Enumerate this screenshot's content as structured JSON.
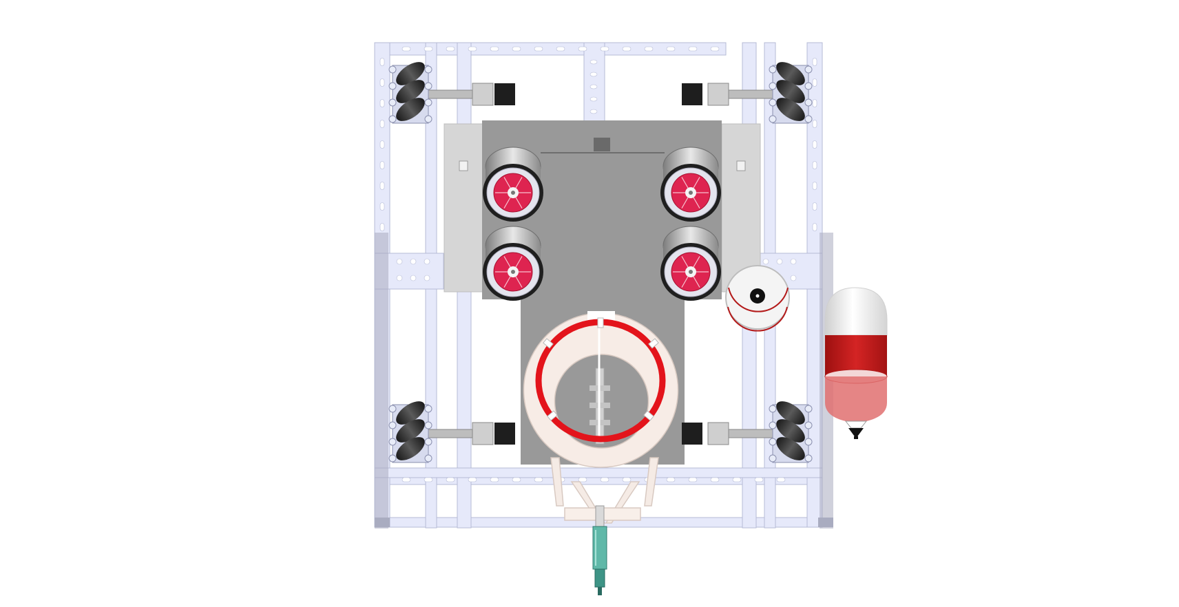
{
  "view": {
    "background": "#ffffff",
    "frame_color": "#e6e9fa",
    "frame_edge": "#b6bbd6",
    "frame_shadow": "#a9acc0",
    "hole_color": "#ffffff",
    "plate_color": "#999999",
    "plate_dark": "#8c8c8c",
    "bracket_color": "#d0d0d0",
    "hub_color": "#de2450",
    "wheel_rim": "#e4e4ee",
    "tire_color": "#2a2a2a",
    "ring_color": "#e3141b",
    "collar_color": "#f7ece6",
    "sensor_color": "#5fb8a8",
    "bottle_red": "#c81e1e",
    "bottle_glass": "#f2f2f2"
  },
  "components": [
    {
      "name": "chassis-frame",
      "icon": "aluminum-extrusion-frame-icon"
    },
    {
      "name": "mecanum-wheel-front-left",
      "icon": "mecanum-wheel-icon"
    },
    {
      "name": "mecanum-wheel-front-right",
      "icon": "mecanum-wheel-icon"
    },
    {
      "name": "mecanum-wheel-rear-left",
      "icon": "mecanum-wheel-icon"
    },
    {
      "name": "mecanum-wheel-rear-right",
      "icon": "mecanum-wheel-icon"
    },
    {
      "name": "shooter-wheel-top-left",
      "icon": "shooter-wheel-icon"
    },
    {
      "name": "shooter-wheel-top-right",
      "icon": "shooter-wheel-icon"
    },
    {
      "name": "shooter-wheel-bottom-left",
      "icon": "shooter-wheel-icon"
    },
    {
      "name": "shooter-wheel-bottom-right",
      "icon": "shooter-wheel-icon"
    },
    {
      "name": "intake-ring",
      "icon": "ring-icon"
    },
    {
      "name": "ball-cup",
      "icon": "cup-icon"
    },
    {
      "name": "bottle",
      "icon": "bottle-icon"
    },
    {
      "name": "sensor-probe",
      "icon": "probe-icon"
    }
  ]
}
